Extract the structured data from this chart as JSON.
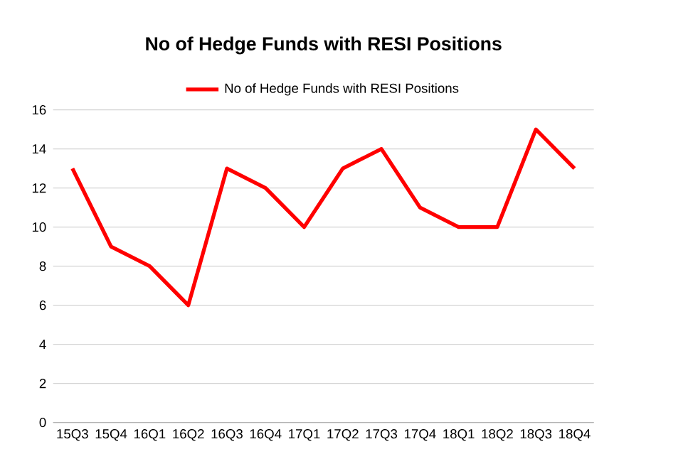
{
  "chart_data": {
    "type": "line",
    "title": "No of Hedge Funds with RESI Positions",
    "categories": [
      "15Q3",
      "15Q4",
      "16Q1",
      "16Q2",
      "16Q3",
      "16Q4",
      "17Q1",
      "17Q2",
      "17Q3",
      "17Q4",
      "18Q1",
      "18Q2",
      "18Q3",
      "18Q4"
    ],
    "series": [
      {
        "name": "No of Hedge Funds with RESI Positions",
        "color": "#ff0000",
        "values": [
          13,
          9,
          8,
          6,
          13,
          12,
          10,
          13,
          14,
          11,
          10,
          10,
          15,
          13
        ]
      }
    ],
    "ylim": [
      0,
      16
    ],
    "yticks": [
      0,
      2,
      4,
      6,
      8,
      10,
      12,
      14,
      16
    ],
    "grid": "y",
    "legend": "top",
    "marker": "none",
    "line_style": "solid"
  }
}
